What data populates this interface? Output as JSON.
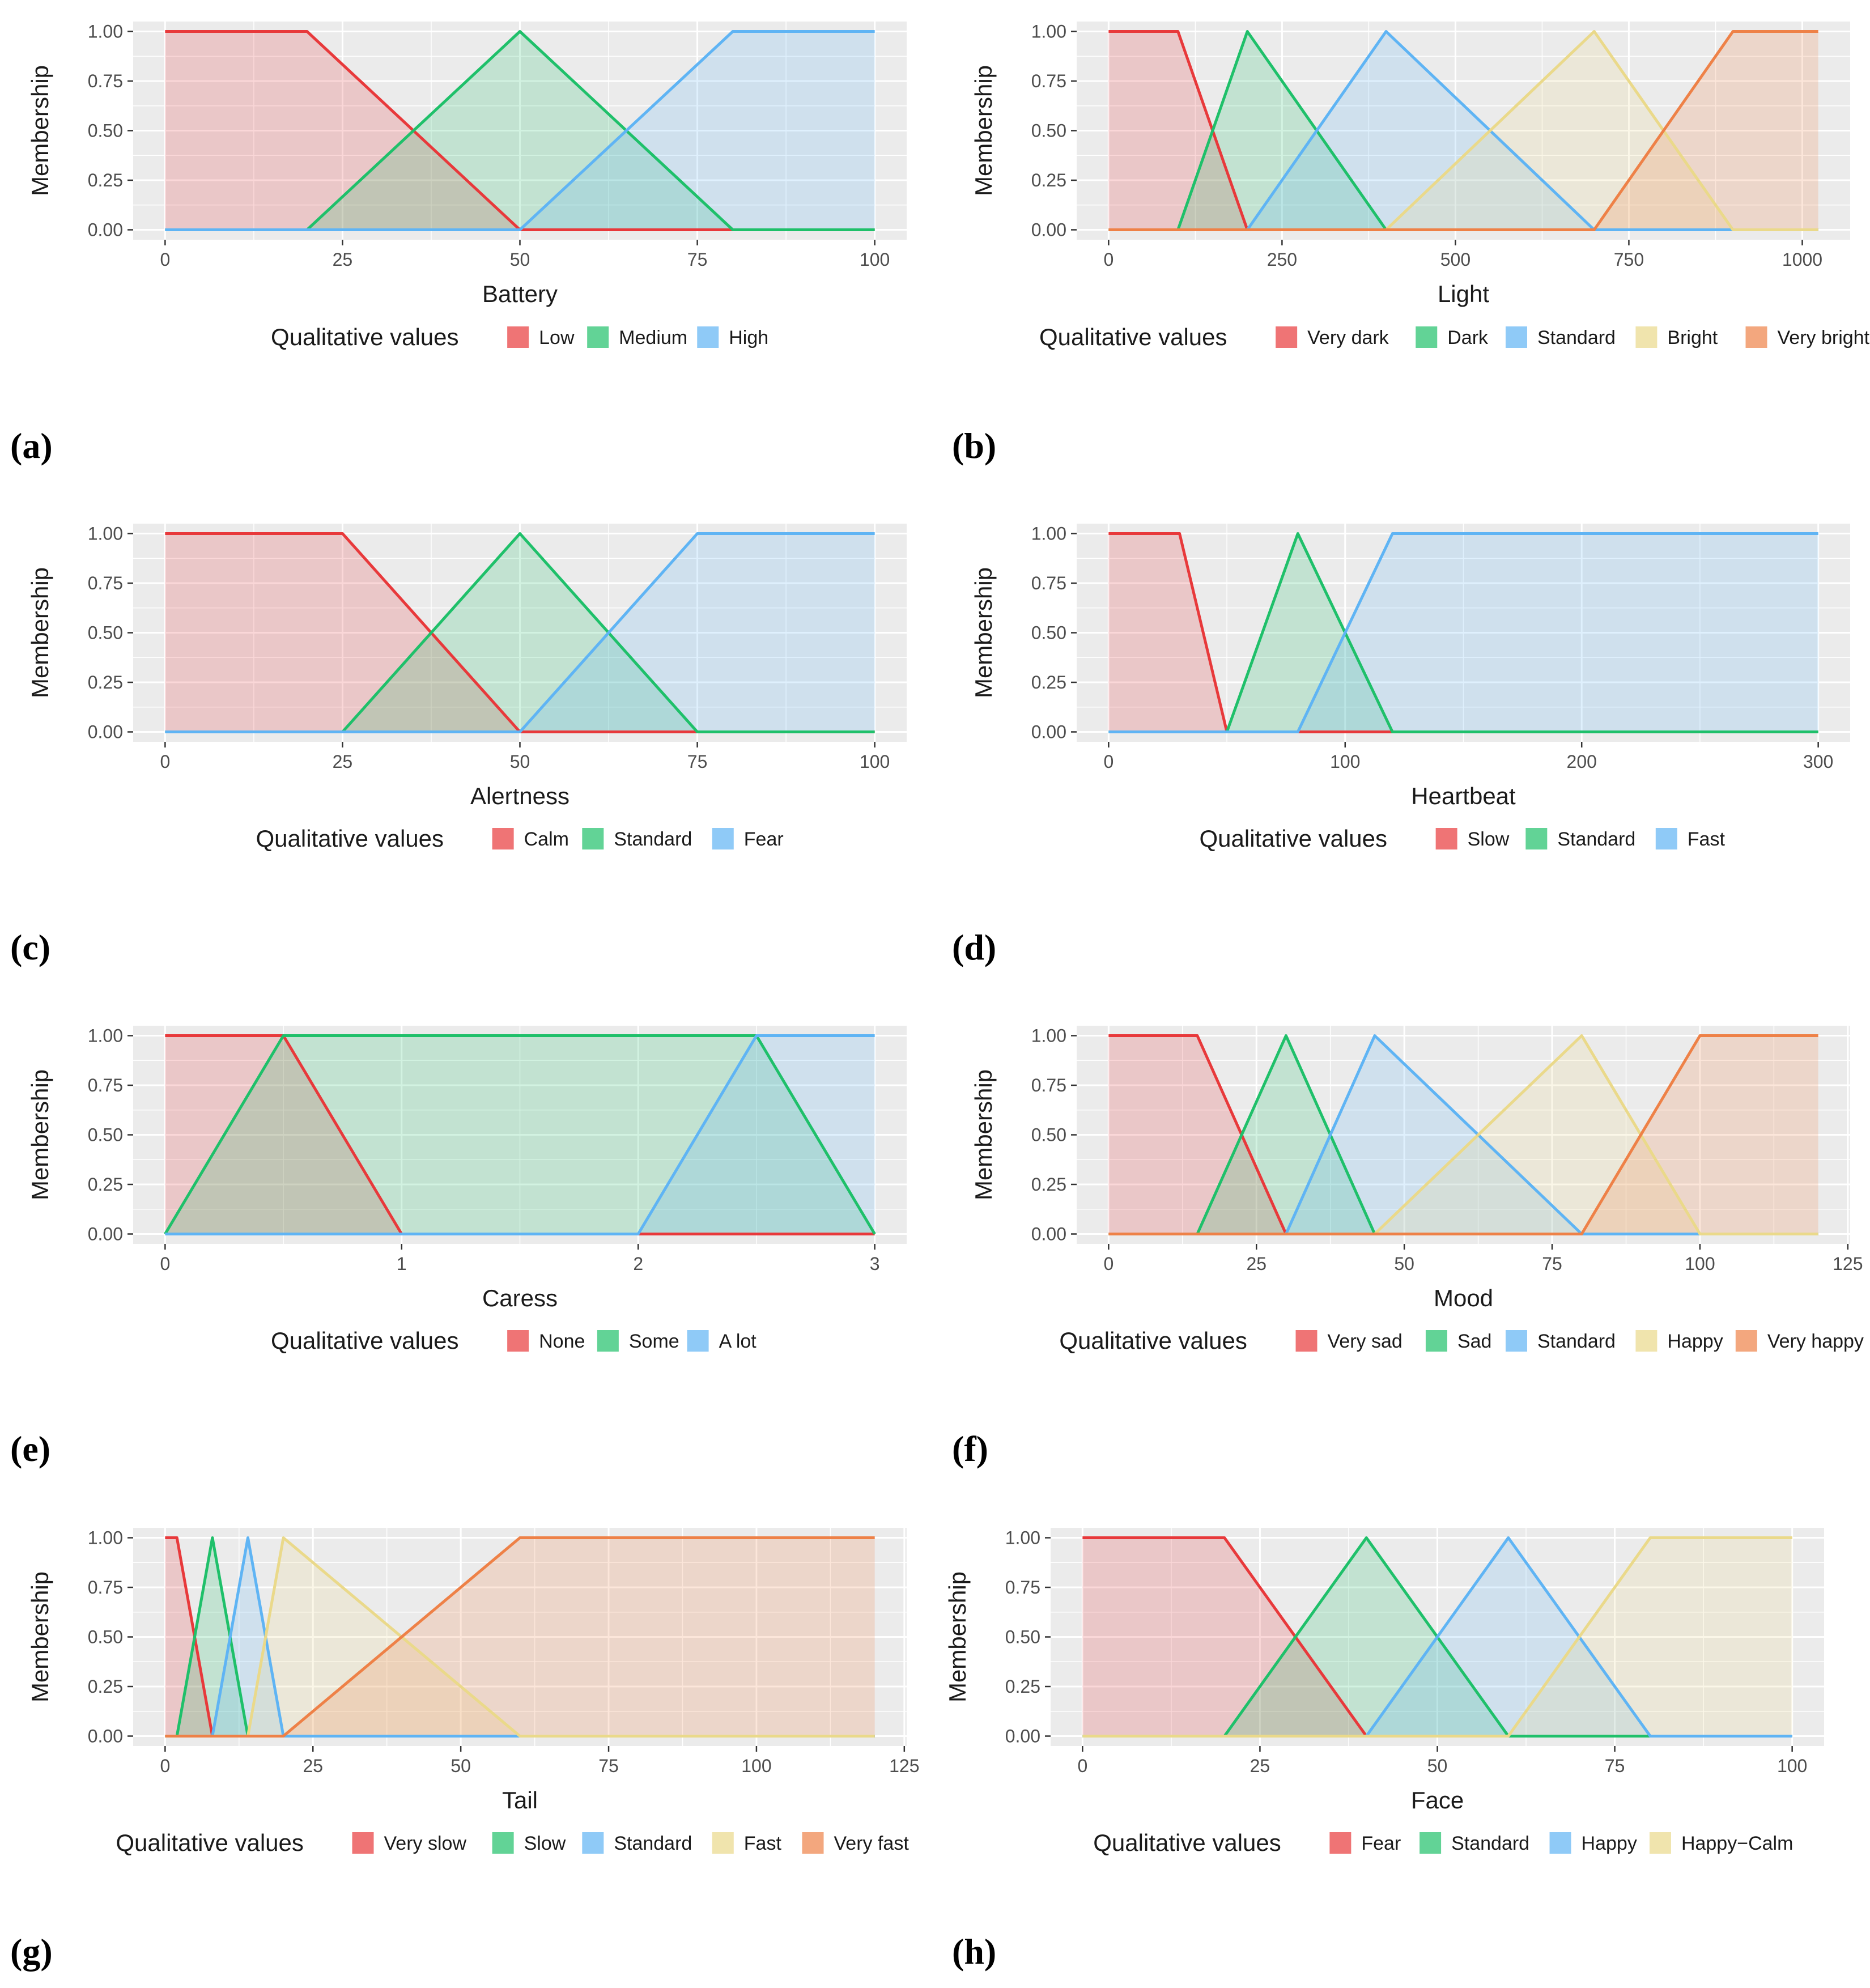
{
  "colors": {
    "red": "#e8393b",
    "green": "#1fc06a",
    "blue": "#5fb4f4",
    "yellow": "#ead98a",
    "orange": "#ee8147",
    "panel_bg": "#ebebeb",
    "grid": "#ffffff"
  },
  "chart_data": [
    {
      "type": "area",
      "panel_label": "(a)",
      "xlabel": "Battery",
      "ylabel": "Membership",
      "xlim": [
        0,
        100
      ],
      "ylim": [
        0,
        1
      ],
      "xticks": [
        0,
        25,
        50,
        75,
        100
      ],
      "xtick_labels": [
        "0",
        "25",
        "50",
        "75",
        "100"
      ],
      "yticks": [
        0,
        0.25,
        0.5,
        0.75,
        1
      ],
      "ytick_labels": [
        "0.00",
        "0.25",
        "0.50",
        "0.75",
        "1.00"
      ],
      "legend_title": "Qualitative values",
      "series": [
        {
          "name": "Low",
          "color": "red",
          "points": [
            [
              0,
              1
            ],
            [
              20,
              1
            ],
            [
              50,
              0
            ],
            [
              100,
              0
            ]
          ]
        },
        {
          "name": "Medium",
          "color": "green",
          "points": [
            [
              0,
              0
            ],
            [
              20,
              0
            ],
            [
              50,
              1
            ],
            [
              80,
              0
            ],
            [
              100,
              0
            ]
          ]
        },
        {
          "name": "High",
          "color": "blue",
          "points": [
            [
              0,
              0
            ],
            [
              50,
              0
            ],
            [
              80,
              1
            ],
            [
              100,
              1
            ]
          ]
        }
      ]
    },
    {
      "type": "area",
      "panel_label": "(b)",
      "xlabel": "Light",
      "ylabel": "Membership",
      "xlim": [
        0,
        1023
      ],
      "ylim": [
        0,
        1
      ],
      "xticks": [
        0,
        250,
        500,
        750,
        1000
      ],
      "xtick_labels": [
        "0",
        "250",
        "500",
        "750",
        "1000"
      ],
      "yticks": [
        0,
        0.25,
        0.5,
        0.75,
        1
      ],
      "ytick_labels": [
        "0.00",
        "0.25",
        "0.50",
        "0.75",
        "1.00"
      ],
      "legend_title": "Qualitative values",
      "series": [
        {
          "name": "Very dark",
          "color": "red",
          "points": [
            [
              0,
              1
            ],
            [
              100,
              1
            ],
            [
              200,
              0
            ],
            [
              1023,
              0
            ]
          ]
        },
        {
          "name": "Dark",
          "color": "green",
          "points": [
            [
              0,
              0
            ],
            [
              100,
              0
            ],
            [
              200,
              1
            ],
            [
              400,
              0
            ],
            [
              1023,
              0
            ]
          ]
        },
        {
          "name": "Standard",
          "color": "blue",
          "points": [
            [
              0,
              0
            ],
            [
              200,
              0
            ],
            [
              400,
              1
            ],
            [
              700,
              0
            ],
            [
              1023,
              0
            ]
          ]
        },
        {
          "name": "Bright",
          "color": "yellow",
          "points": [
            [
              0,
              0
            ],
            [
              400,
              0
            ],
            [
              700,
              1
            ],
            [
              900,
              0
            ],
            [
              1023,
              0
            ]
          ]
        },
        {
          "name": "Very bright",
          "color": "orange",
          "points": [
            [
              0,
              0
            ],
            [
              700,
              0
            ],
            [
              900,
              1
            ],
            [
              1023,
              1
            ]
          ]
        }
      ]
    },
    {
      "type": "area",
      "panel_label": "(c)",
      "xlabel": "Alertness",
      "ylabel": "Membership",
      "xlim": [
        0,
        100
      ],
      "ylim": [
        0,
        1
      ],
      "xticks": [
        0,
        25,
        50,
        75,
        100
      ],
      "xtick_labels": [
        "0",
        "25",
        "50",
        "75",
        "100"
      ],
      "yticks": [
        0,
        0.25,
        0.5,
        0.75,
        1
      ],
      "ytick_labels": [
        "0.00",
        "0.25",
        "0.50",
        "0.75",
        "1.00"
      ],
      "legend_title": "Qualitative values",
      "series": [
        {
          "name": "Calm",
          "color": "red",
          "points": [
            [
              0,
              1
            ],
            [
              25,
              1
            ],
            [
              50,
              0
            ],
            [
              100,
              0
            ]
          ]
        },
        {
          "name": "Standard",
          "color": "green",
          "points": [
            [
              0,
              0
            ],
            [
              25,
              0
            ],
            [
              50,
              1
            ],
            [
              75,
              0
            ],
            [
              100,
              0
            ]
          ]
        },
        {
          "name": "Fear",
          "color": "blue",
          "points": [
            [
              0,
              0
            ],
            [
              50,
              0
            ],
            [
              75,
              1
            ],
            [
              100,
              1
            ]
          ]
        }
      ]
    },
    {
      "type": "area",
      "panel_label": "(d)",
      "xlabel": "Heartbeat",
      "ylabel": "Membership",
      "xlim": [
        0,
        300
      ],
      "ylim": [
        0,
        1
      ],
      "xticks": [
        0,
        100,
        200,
        300
      ],
      "xtick_labels": [
        "0",
        "100",
        "200",
        "300"
      ],
      "yticks": [
        0,
        0.25,
        0.5,
        0.75,
        1
      ],
      "ytick_labels": [
        "0.00",
        "0.25",
        "0.50",
        "0.75",
        "1.00"
      ],
      "legend_title": "Qualitative values",
      "series": [
        {
          "name": "Slow",
          "color": "red",
          "points": [
            [
              0,
              1
            ],
            [
              30,
              1
            ],
            [
              50,
              0
            ],
            [
              300,
              0
            ]
          ]
        },
        {
          "name": "Standard",
          "color": "green",
          "points": [
            [
              0,
              0
            ],
            [
              50,
              0
            ],
            [
              80,
              1
            ],
            [
              120,
              0
            ],
            [
              300,
              0
            ]
          ]
        },
        {
          "name": "Fast",
          "color": "blue",
          "points": [
            [
              0,
              0
            ],
            [
              80,
              0
            ],
            [
              120,
              1
            ],
            [
              300,
              1
            ]
          ]
        }
      ]
    },
    {
      "type": "area",
      "panel_label": "(e)",
      "xlabel": "Caress",
      "ylabel": "Membership",
      "xlim": [
        0,
        3
      ],
      "ylim": [
        0,
        1
      ],
      "xticks": [
        0,
        1,
        2,
        3
      ],
      "xtick_labels": [
        "0",
        "1",
        "2",
        "3"
      ],
      "yticks": [
        0,
        0.25,
        0.5,
        0.75,
        1
      ],
      "ytick_labels": [
        "0.00",
        "0.25",
        "0.50",
        "0.75",
        "1.00"
      ],
      "legend_title": "Qualitative values",
      "series": [
        {
          "name": "None",
          "color": "red",
          "points": [
            [
              0,
              1
            ],
            [
              0.5,
              1
            ],
            [
              1,
              0
            ],
            [
              3,
              0
            ]
          ]
        },
        {
          "name": "Some",
          "color": "green",
          "points": [
            [
              0,
              0
            ],
            [
              0.5,
              1
            ],
            [
              2.5,
              1
            ],
            [
              3,
              0
            ]
          ]
        },
        {
          "name": "A lot",
          "color": "blue",
          "points": [
            [
              0,
              0
            ],
            [
              2,
              0
            ],
            [
              2.5,
              1
            ],
            [
              3,
              1
            ]
          ]
        }
      ]
    },
    {
      "type": "area",
      "panel_label": "(f)",
      "xlabel": "Mood",
      "ylabel": "Membership",
      "xlim": [
        0,
        120
      ],
      "ylim": [
        0,
        1
      ],
      "xticks": [
        0,
        25,
        50,
        75,
        100,
        125
      ],
      "xtick_labels": [
        "0",
        "25",
        "50",
        "75",
        "100",
        "125"
      ],
      "yticks": [
        0,
        0.25,
        0.5,
        0.75,
        1
      ],
      "ytick_labels": [
        "0.00",
        "0.25",
        "0.50",
        "0.75",
        "1.00"
      ],
      "legend_title": "Qualitative values",
      "series": [
        {
          "name": "Very sad",
          "color": "red",
          "points": [
            [
              0,
              1
            ],
            [
              15,
              1
            ],
            [
              30,
              0
            ],
            [
              120,
              0
            ]
          ]
        },
        {
          "name": "Sad",
          "color": "green",
          "points": [
            [
              0,
              0
            ],
            [
              15,
              0
            ],
            [
              30,
              1
            ],
            [
              45,
              0
            ],
            [
              120,
              0
            ]
          ]
        },
        {
          "name": "Standard",
          "color": "blue",
          "points": [
            [
              0,
              0
            ],
            [
              30,
              0
            ],
            [
              45,
              1
            ],
            [
              80,
              0
            ],
            [
              120,
              0
            ]
          ]
        },
        {
          "name": "Happy",
          "color": "yellow",
          "points": [
            [
              0,
              0
            ],
            [
              45,
              0
            ],
            [
              80,
              1
            ],
            [
              100,
              0
            ],
            [
              120,
              0
            ]
          ]
        },
        {
          "name": "Very happy",
          "color": "orange",
          "points": [
            [
              0,
              0
            ],
            [
              80,
              0
            ],
            [
              100,
              1
            ],
            [
              120,
              1
            ]
          ]
        }
      ]
    },
    {
      "type": "area",
      "panel_label": "(g)",
      "xlabel": "Tail",
      "ylabel": "Membership",
      "xlim": [
        0,
        120
      ],
      "ylim": [
        0,
        1
      ],
      "xticks": [
        0,
        25,
        50,
        75,
        100,
        125
      ],
      "xtick_labels": [
        "0",
        "25",
        "50",
        "75",
        "100",
        "125"
      ],
      "yticks": [
        0,
        0.25,
        0.5,
        0.75,
        1
      ],
      "ytick_labels": [
        "0.00",
        "0.25",
        "0.50",
        "0.75",
        "1.00"
      ],
      "legend_title": "Qualitative values",
      "series": [
        {
          "name": "Very slow",
          "color": "red",
          "points": [
            [
              0,
              1
            ],
            [
              2,
              1
            ],
            [
              8,
              0
            ],
            [
              120,
              0
            ]
          ]
        },
        {
          "name": "Slow",
          "color": "green",
          "points": [
            [
              0,
              0
            ],
            [
              2,
              0
            ],
            [
              8,
              1
            ],
            [
              14,
              0
            ],
            [
              120,
              0
            ]
          ]
        },
        {
          "name": "Standard",
          "color": "blue",
          "points": [
            [
              0,
              0
            ],
            [
              8,
              0
            ],
            [
              14,
              1
            ],
            [
              20,
              0
            ],
            [
              120,
              0
            ]
          ]
        },
        {
          "name": "Fast",
          "color": "yellow",
          "points": [
            [
              0,
              0
            ],
            [
              14,
              0
            ],
            [
              20,
              1
            ],
            [
              60,
              0
            ],
            [
              120,
              0
            ]
          ]
        },
        {
          "name": "Very fast",
          "color": "orange",
          "points": [
            [
              0,
              0
            ],
            [
              20,
              0
            ],
            [
              60,
              1
            ],
            [
              120,
              1
            ]
          ]
        }
      ]
    },
    {
      "type": "area",
      "panel_label": "(h)",
      "xlabel": "Face",
      "ylabel": "Membership",
      "xlim": [
        0,
        100
      ],
      "ylim": [
        0,
        1
      ],
      "xticks": [
        0,
        25,
        50,
        75,
        100
      ],
      "xtick_labels": [
        "0",
        "25",
        "50",
        "75",
        "100"
      ],
      "yticks": [
        0,
        0.25,
        0.5,
        0.75,
        1
      ],
      "ytick_labels": [
        "0.00",
        "0.25",
        "0.50",
        "0.75",
        "1.00"
      ],
      "legend_title": "Qualitative values",
      "series": [
        {
          "name": "Fear",
          "color": "red",
          "points": [
            [
              0,
              1
            ],
            [
              20,
              1
            ],
            [
              40,
              0
            ],
            [
              100,
              0
            ]
          ]
        },
        {
          "name": "Standard",
          "color": "green",
          "points": [
            [
              0,
              0
            ],
            [
              20,
              0
            ],
            [
              40,
              1
            ],
            [
              60,
              0
            ],
            [
              100,
              0
            ]
          ]
        },
        {
          "name": "Happy",
          "color": "blue",
          "points": [
            [
              0,
              0
            ],
            [
              40,
              0
            ],
            [
              60,
              1
            ],
            [
              80,
              0
            ],
            [
              100,
              0
            ]
          ]
        },
        {
          "name": "Happy−Calm",
          "color": "yellow",
          "points": [
            [
              0,
              0
            ],
            [
              60,
              0
            ],
            [
              80,
              1
            ],
            [
              100,
              1
            ]
          ]
        }
      ]
    }
  ]
}
